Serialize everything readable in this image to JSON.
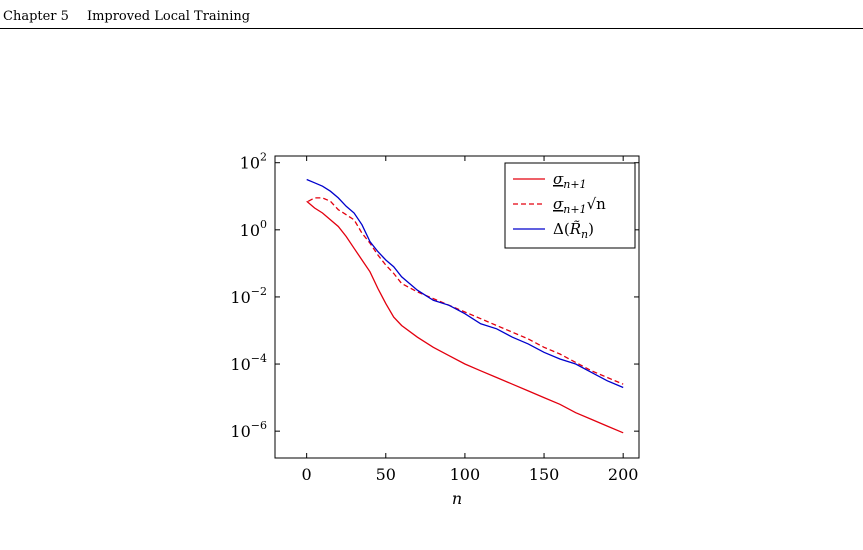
{
  "header": {
    "chapter": "Chapter 5",
    "title": "Improved Local Training"
  },
  "chart_data": {
    "type": "line",
    "title": "",
    "xlabel": "n",
    "ylabel": "",
    "xlim": [
      -20,
      210
    ],
    "ylim": [
      -6.8,
      2.2
    ],
    "yscale": "log",
    "grid": false,
    "legend_position": "top-right",
    "x_ticks": [
      0,
      50,
      100,
      150,
      200
    ],
    "x_tick_labels": [
      "0",
      "50",
      "100",
      "150",
      "200"
    ],
    "y_tick_exponents": [
      2,
      0,
      -2,
      -4,
      -6
    ],
    "y_tick_base": "10",
    "y_tick_sign_labels": [
      "2",
      "0",
      "−2",
      "−4",
      "−6"
    ],
    "series": [
      {
        "name": "σ_{n+1}",
        "legend_main": "σ",
        "legend_sub": "n+1",
        "legend_tail": "",
        "color": "#e3000f",
        "dash": "solid",
        "x": [
          0,
          5,
          10,
          15,
          20,
          25,
          30,
          35,
          40,
          45,
          50,
          55,
          60,
          70,
          80,
          90,
          100,
          110,
          120,
          130,
          140,
          150,
          160,
          170,
          180,
          190,
          200
        ],
        "log10_y": [
          0.85,
          0.65,
          0.5,
          0.3,
          0.1,
          -0.2,
          -0.55,
          -0.9,
          -1.25,
          -1.75,
          -2.2,
          -2.6,
          -2.85,
          -3.2,
          -3.5,
          -3.75,
          -4.0,
          -4.2,
          -4.4,
          -4.6,
          -4.8,
          -5.0,
          -5.2,
          -5.45,
          -5.65,
          -5.85,
          -6.05
        ]
      },
      {
        "name": "σ_{n+1}√n",
        "legend_main": "σ",
        "legend_sub": "n+1",
        "legend_tail": "√n",
        "color": "#e3000f",
        "dash": "dashed",
        "x": [
          1,
          5,
          10,
          15,
          20,
          25,
          30,
          35,
          40,
          45,
          50,
          55,
          60,
          70,
          80,
          90,
          100,
          110,
          120,
          130,
          140,
          150,
          160,
          170,
          180,
          190,
          200
        ],
        "log10_y": [
          0.85,
          0.95,
          0.95,
          0.85,
          0.6,
          0.45,
          0.3,
          -0.1,
          -0.4,
          -0.75,
          -1.05,
          -1.3,
          -1.6,
          -1.85,
          -2.05,
          -2.25,
          -2.45,
          -2.65,
          -2.85,
          -3.05,
          -3.25,
          -3.5,
          -3.7,
          -3.95,
          -4.2,
          -4.4,
          -4.6
        ]
      },
      {
        "name": "Δ(R̃_n)",
        "legend_main": "Δ(",
        "legend_sub": "n",
        "legend_tail": ")",
        "legend_var": "R̃",
        "color": "#0000cc",
        "dash": "solid",
        "x": [
          0,
          5,
          10,
          15,
          20,
          25,
          30,
          35,
          40,
          45,
          50,
          55,
          60,
          70,
          80,
          90,
          100,
          110,
          120,
          130,
          140,
          150,
          160,
          170,
          180,
          190,
          200
        ],
        "log10_y": [
          1.5,
          1.4,
          1.3,
          1.15,
          0.95,
          0.7,
          0.5,
          0.15,
          -0.35,
          -0.65,
          -0.9,
          -1.1,
          -1.4,
          -1.8,
          -2.1,
          -2.25,
          -2.5,
          -2.8,
          -2.95,
          -3.2,
          -3.4,
          -3.65,
          -3.85,
          -4.0,
          -4.25,
          -4.5,
          -4.7
        ]
      }
    ]
  }
}
